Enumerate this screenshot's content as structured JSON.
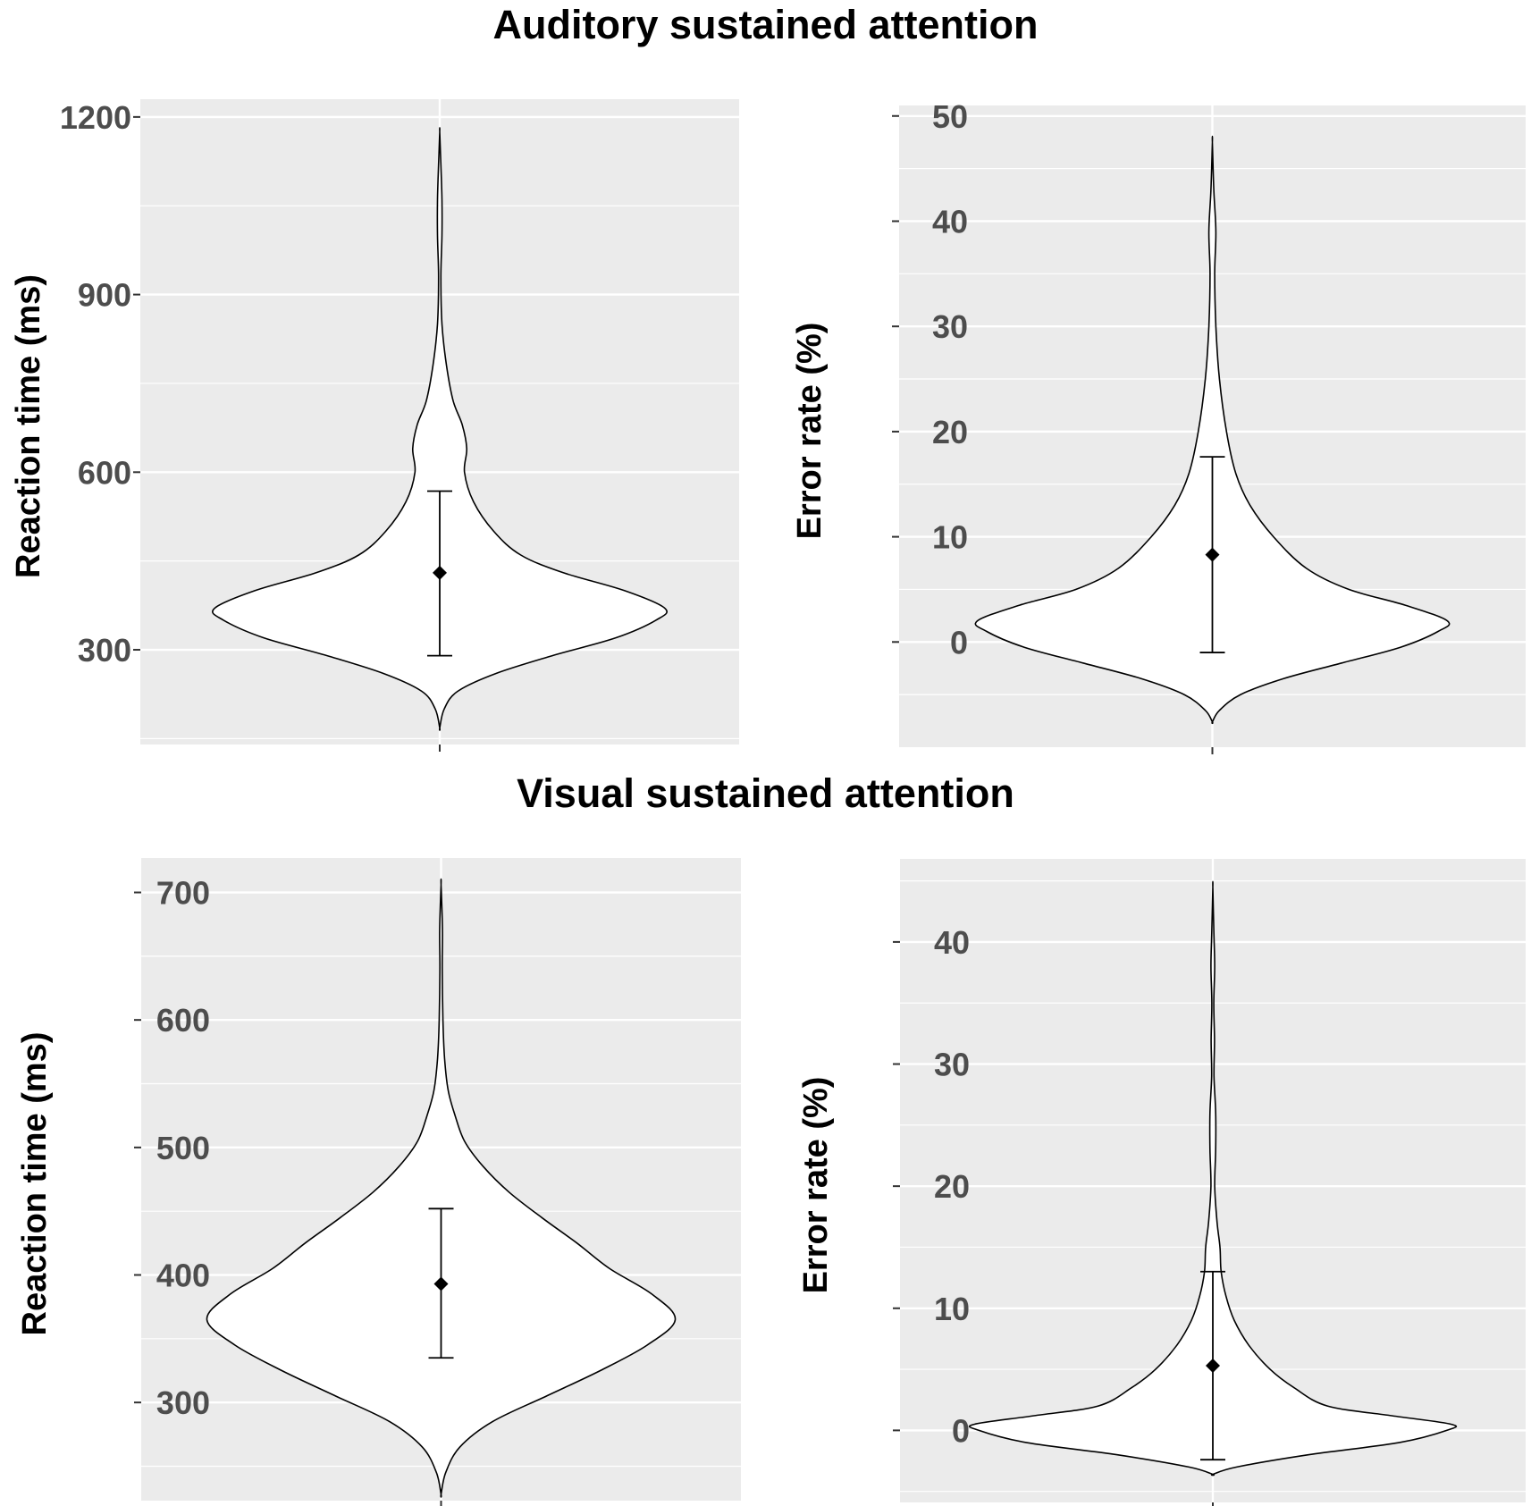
{
  "section_titles": {
    "top": "Auditory sustained attention",
    "bottom": "Visual sustained attention"
  },
  "colors": {
    "panel_background": "#ebebeb",
    "gridline": "#ffffff",
    "violin_fill": "#ffffff",
    "violin_outline": "#000000",
    "point": "#000000",
    "tick_text": "#4d4d4d"
  },
  "chart_data": [
    {
      "type": "violin",
      "section": "Auditory sustained attention",
      "ylabel": "Reaction time (ms)",
      "ylim": [
        140,
        1230
      ],
      "yticks": [
        300,
        600,
        900,
        1200
      ],
      "summary": {
        "mean": 430,
        "lower": 290,
        "upper": 568
      },
      "density": [
        {
          "y": 168,
          "w": 0.0
        },
        {
          "y": 200,
          "w": 0.02
        },
        {
          "y": 230,
          "w": 0.08
        },
        {
          "y": 260,
          "w": 0.25
        },
        {
          "y": 290,
          "w": 0.5
        },
        {
          "y": 320,
          "w": 0.78
        },
        {
          "y": 350,
          "w": 0.96
        },
        {
          "y": 370,
          "w": 1.0
        },
        {
          "y": 400,
          "w": 0.82
        },
        {
          "y": 430,
          "w": 0.55
        },
        {
          "y": 460,
          "w": 0.36
        },
        {
          "y": 500,
          "w": 0.24
        },
        {
          "y": 550,
          "w": 0.15
        },
        {
          "y": 600,
          "w": 0.11
        },
        {
          "y": 640,
          "w": 0.12
        },
        {
          "y": 680,
          "w": 0.1
        },
        {
          "y": 720,
          "w": 0.06
        },
        {
          "y": 780,
          "w": 0.03
        },
        {
          "y": 850,
          "w": 0.01
        },
        {
          "y": 930,
          "w": 0.005
        },
        {
          "y": 1000,
          "w": 0.01
        },
        {
          "y": 1060,
          "w": 0.01
        },
        {
          "y": 1120,
          "w": 0.005
        },
        {
          "y": 1175,
          "w": 0.0
        }
      ]
    },
    {
      "type": "violin",
      "section": "Auditory sustained attention",
      "ylabel": "Error rate (%)",
      "ylim": [
        -10,
        51
      ],
      "yticks": [
        0,
        10,
        20,
        30,
        40,
        50
      ],
      "summary": {
        "mean": 8.3,
        "lower": -1.0,
        "upper": 17.6
      },
      "density": [
        {
          "y": -7.6,
          "w": 0.0
        },
        {
          "y": -6.5,
          "w": 0.03
        },
        {
          "y": -5.0,
          "w": 0.12
        },
        {
          "y": -3.5,
          "w": 0.3
        },
        {
          "y": -2.0,
          "w": 0.55
        },
        {
          "y": -0.5,
          "w": 0.8
        },
        {
          "y": 1.0,
          "w": 0.96
        },
        {
          "y": 2.0,
          "w": 1.0
        },
        {
          "y": 3.5,
          "w": 0.82
        },
        {
          "y": 5.0,
          "w": 0.58
        },
        {
          "y": 7.0,
          "w": 0.4
        },
        {
          "y": 10.0,
          "w": 0.26
        },
        {
          "y": 13.0,
          "w": 0.16
        },
        {
          "y": 16.0,
          "w": 0.1
        },
        {
          "y": 20.0,
          "w": 0.06
        },
        {
          "y": 25.0,
          "w": 0.03
        },
        {
          "y": 30.0,
          "w": 0.015
        },
        {
          "y": 35.0,
          "w": 0.01
        },
        {
          "y": 39.0,
          "w": 0.015
        },
        {
          "y": 43.0,
          "w": 0.006
        },
        {
          "y": 47.5,
          "w": 0.0
        }
      ]
    },
    {
      "type": "violin",
      "section": "Visual sustained attention",
      "ylabel": "Reaction time (ms)",
      "ylim": [
        223,
        727
      ],
      "yticks": [
        300,
        400,
        500,
        600,
        700
      ],
      "summary": {
        "mean": 393,
        "lower": 335,
        "upper": 452
      },
      "density": [
        {
          "y": 228,
          "w": 0.0
        },
        {
          "y": 245,
          "w": 0.02
        },
        {
          "y": 265,
          "w": 0.08
        },
        {
          "y": 285,
          "w": 0.22
        },
        {
          "y": 305,
          "w": 0.45
        },
        {
          "y": 325,
          "w": 0.68
        },
        {
          "y": 345,
          "w": 0.88
        },
        {
          "y": 365,
          "w": 1.0
        },
        {
          "y": 385,
          "w": 0.9
        },
        {
          "y": 405,
          "w": 0.72
        },
        {
          "y": 425,
          "w": 0.58
        },
        {
          "y": 445,
          "w": 0.43
        },
        {
          "y": 465,
          "w": 0.29
        },
        {
          "y": 485,
          "w": 0.18
        },
        {
          "y": 505,
          "w": 0.1
        },
        {
          "y": 525,
          "w": 0.06
        },
        {
          "y": 545,
          "w": 0.03
        },
        {
          "y": 570,
          "w": 0.015
        },
        {
          "y": 600,
          "w": 0.008
        },
        {
          "y": 640,
          "w": 0.005
        },
        {
          "y": 670,
          "w": 0.006
        },
        {
          "y": 706,
          "w": 0.0
        }
      ]
    },
    {
      "type": "violin",
      "section": "Visual sustained attention",
      "ylabel": "Error rate (%)",
      "ylim": [
        -5.9,
        46.8
      ],
      "yticks": [
        0,
        10,
        20,
        30,
        40
      ],
      "summary": {
        "mean": 5.3,
        "lower": -2.4,
        "upper": 13.0
      },
      "density": [
        {
          "y": -3.6,
          "w": 0.0
        },
        {
          "y": -3.0,
          "w": 0.1
        },
        {
          "y": -2.0,
          "w": 0.4
        },
        {
          "y": -1.0,
          "w": 0.78
        },
        {
          "y": 0.0,
          "w": 0.98
        },
        {
          "y": 0.5,
          "w": 1.0
        },
        {
          "y": 1.2,
          "w": 0.75
        },
        {
          "y": 2.0,
          "w": 0.48
        },
        {
          "y": 3.5,
          "w": 0.34
        },
        {
          "y": 5.0,
          "w": 0.24
        },
        {
          "y": 7.0,
          "w": 0.15
        },
        {
          "y": 9.0,
          "w": 0.09
        },
        {
          "y": 11.0,
          "w": 0.055
        },
        {
          "y": 13.0,
          "w": 0.035
        },
        {
          "y": 15.0,
          "w": 0.03
        },
        {
          "y": 17.0,
          "w": 0.018
        },
        {
          "y": 20.0,
          "w": 0.008
        },
        {
          "y": 23.0,
          "w": 0.012
        },
        {
          "y": 26.0,
          "w": 0.012
        },
        {
          "y": 29.0,
          "w": 0.005
        },
        {
          "y": 32.0,
          "w": 0.007
        },
        {
          "y": 35.0,
          "w": 0.004
        },
        {
          "y": 38.0,
          "w": 0.008
        },
        {
          "y": 41.0,
          "w": 0.004
        },
        {
          "y": 44.5,
          "w": 0.0
        }
      ]
    }
  ]
}
